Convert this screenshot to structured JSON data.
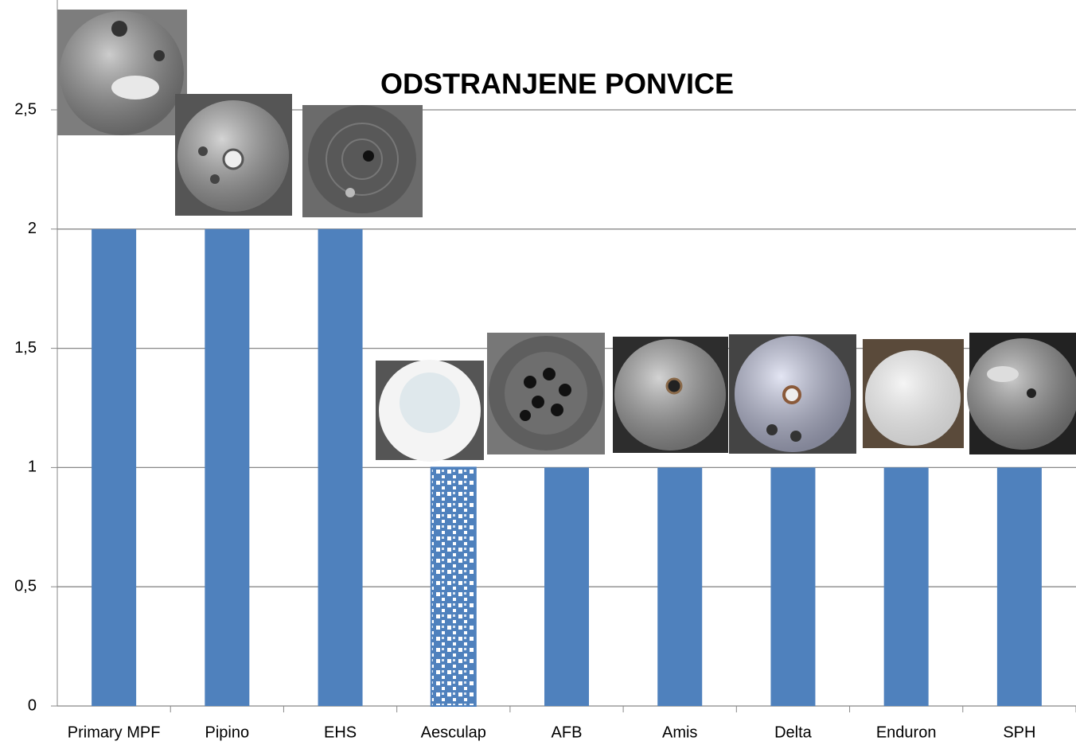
{
  "chart_data": {
    "type": "bar",
    "title": "ODSTRANJENE PONVICE",
    "categories": [
      "Primary MPF",
      "Pipino",
      "EHS",
      "Aesculap",
      "AFB",
      "Amis",
      "Delta",
      "Enduron",
      "SPH"
    ],
    "values": [
      2,
      2,
      2,
      1,
      1,
      1,
      1,
      1,
      1
    ],
    "color": "#4f81bd",
    "patterns": [
      "solid",
      "solid",
      "solid",
      "checker",
      "solid",
      "solid",
      "solid",
      "solid",
      "solid"
    ],
    "ylim": [
      0,
      2.5
    ],
    "yticks": [
      0,
      {
        "value": 0.5,
        "label": "0,5"
      },
      1,
      {
        "value": 1.5,
        "label": "1,5"
      },
      2,
      {
        "value": 2.5,
        "label": "2,5"
      }
    ],
    "grid": true
  }
}
